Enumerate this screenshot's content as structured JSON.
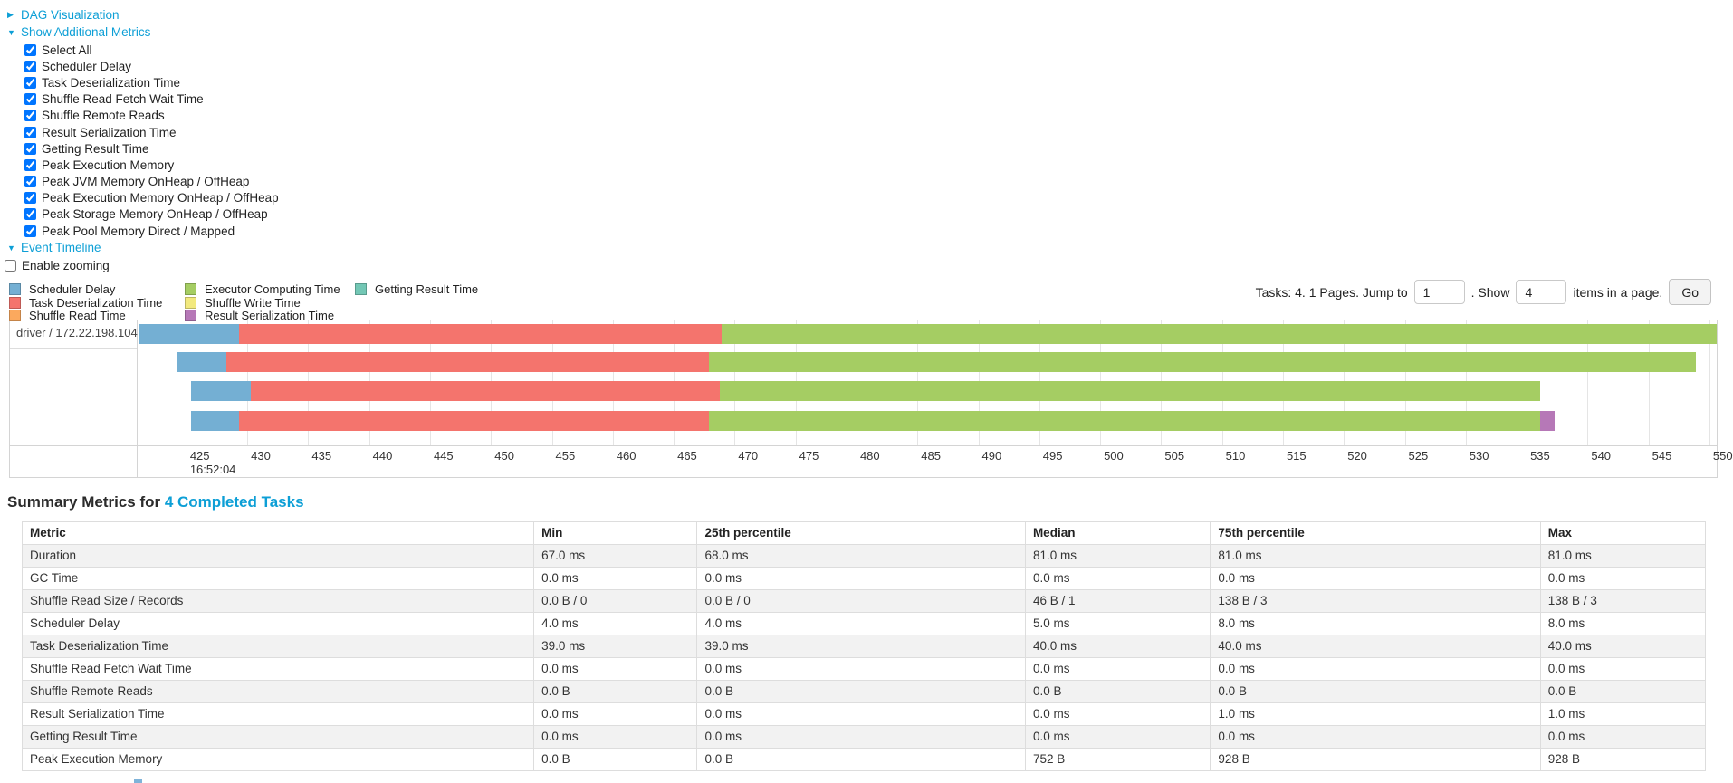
{
  "colors": {
    "link": "#0d9fd6"
  },
  "toggles": {
    "dag": {
      "label": "DAG Visualization",
      "expanded": false
    },
    "additional_metrics": {
      "label": "Show Additional Metrics",
      "expanded": true
    },
    "event_timeline": {
      "label": "Event Timeline",
      "expanded": true
    }
  },
  "metric_checkboxes": [
    {
      "label": "Select All",
      "checked": true
    },
    {
      "label": "Scheduler Delay",
      "checked": true
    },
    {
      "label": "Task Deserialization Time",
      "checked": true
    },
    {
      "label": "Shuffle Read Fetch Wait Time",
      "checked": true
    },
    {
      "label": "Shuffle Remote Reads",
      "checked": true
    },
    {
      "label": "Result Serialization Time",
      "checked": true
    },
    {
      "label": "Getting Result Time",
      "checked": true
    },
    {
      "label": "Peak Execution Memory",
      "checked": true
    },
    {
      "label": "Peak JVM Memory OnHeap / OffHeap",
      "checked": true
    },
    {
      "label": "Peak Execution Memory OnHeap / OffHeap",
      "checked": true
    },
    {
      "label": "Peak Storage Memory OnHeap / OffHeap",
      "checked": true
    },
    {
      "label": "Peak Pool Memory Direct / Mapped",
      "checked": true
    }
  ],
  "enable_zooming": {
    "label": "Enable zooming",
    "checked": false
  },
  "legend": {
    "columns": [
      [
        {
          "label": "Scheduler Delay",
          "color": "#74afd3"
        },
        {
          "label": "Task Deserialization Time",
          "color": "#f4746d"
        },
        {
          "label": "Shuffle Read Time",
          "color": "#fba95e"
        }
      ],
      [
        {
          "label": "Executor Computing Time",
          "color": "#a5cd63"
        },
        {
          "label": "Shuffle Write Time",
          "color": "#f2e97e"
        },
        {
          "label": "Result Serialization Time",
          "color": "#b678b7"
        }
      ],
      [
        {
          "label": "Getting Result Time",
          "color": "#73c7b5"
        }
      ]
    ]
  },
  "pagination": {
    "summary_text": "Tasks: 4. 1 Pages. Jump to",
    "jump_value": "1",
    "between_text": ". Show",
    "show_value": "4",
    "suffix_text": "items in a page.",
    "go_label": "Go"
  },
  "chart_data": {
    "type": "timeline",
    "group_label": "driver / 172.22.198.104",
    "axis": {
      "min": 421.0,
      "max": 550.6,
      "tick_start": 425,
      "tick_step": 5,
      "tick_end": 550,
      "time_base_label": "16:52:04",
      "unit": "milliseconds within 16:52:04"
    },
    "bar_layout": {
      "height": 22,
      "tops": [
        4,
        35,
        67,
        100
      ]
    },
    "tasks": [
      {
        "segments": [
          {
            "type": "Scheduler Delay",
            "start": 421.1,
            "end": 429.3
          },
          {
            "type": "Task Deserialization Time",
            "start": 429.3,
            "end": 468.9
          },
          {
            "type": "Executor Computing Time",
            "start": 468.9,
            "end": 550.6
          }
        ]
      },
      {
        "segments": [
          {
            "type": "Scheduler Delay",
            "start": 424.3,
            "end": 428.3
          },
          {
            "type": "Task Deserialization Time",
            "start": 428.3,
            "end": 467.9
          },
          {
            "type": "Executor Computing Time",
            "start": 467.9,
            "end": 548.9
          }
        ]
      },
      {
        "segments": [
          {
            "type": "Scheduler Delay",
            "start": 425.4,
            "end": 430.3
          },
          {
            "type": "Task Deserialization Time",
            "start": 430.3,
            "end": 468.8
          },
          {
            "type": "Executor Computing Time",
            "start": 468.8,
            "end": 536.1
          }
        ]
      },
      {
        "segments": [
          {
            "type": "Scheduler Delay",
            "start": 425.4,
            "end": 429.3
          },
          {
            "type": "Task Deserialization Time",
            "start": 429.3,
            "end": 467.9
          },
          {
            "type": "Executor Computing Time",
            "start": 467.9,
            "end": 536.1
          },
          {
            "type": "Result Serialization Time",
            "start": 536.1,
            "end": 537.3
          }
        ]
      }
    ]
  },
  "summary": {
    "title_prefix": "Summary Metrics for ",
    "title_link": "4 Completed Tasks",
    "columns": [
      "Metric",
      "Min",
      "25th percentile",
      "Median",
      "75th percentile",
      "Max"
    ],
    "rows": [
      [
        "Duration",
        "67.0 ms",
        "68.0 ms",
        "81.0 ms",
        "81.0 ms",
        "81.0 ms"
      ],
      [
        "GC Time",
        "0.0 ms",
        "0.0 ms",
        "0.0 ms",
        "0.0 ms",
        "0.0 ms"
      ],
      [
        "Shuffle Read Size / Records",
        "0.0 B / 0",
        "0.0 B / 0",
        "46 B / 1",
        "138 B / 3",
        "138 B / 3"
      ],
      [
        "Scheduler Delay",
        "4.0 ms",
        "4.0 ms",
        "5.0 ms",
        "8.0 ms",
        "8.0 ms"
      ],
      [
        "Task Deserialization Time",
        "39.0 ms",
        "39.0 ms",
        "40.0 ms",
        "40.0 ms",
        "40.0 ms"
      ],
      [
        "Shuffle Read Fetch Wait Time",
        "0.0 ms",
        "0.0 ms",
        "0.0 ms",
        "0.0 ms",
        "0.0 ms"
      ],
      [
        "Shuffle Remote Reads",
        "0.0 B",
        "0.0 B",
        "0.0 B",
        "0.0 B",
        "0.0 B"
      ],
      [
        "Result Serialization Time",
        "0.0 ms",
        "0.0 ms",
        "0.0 ms",
        "1.0 ms",
        "1.0 ms"
      ],
      [
        "Getting Result Time",
        "0.0 ms",
        "0.0 ms",
        "0.0 ms",
        "0.0 ms",
        "0.0 ms"
      ],
      [
        "Peak Execution Memory",
        "0.0 B",
        "0.0 B",
        "752 B",
        "928 B",
        "928 B"
      ]
    ]
  }
}
